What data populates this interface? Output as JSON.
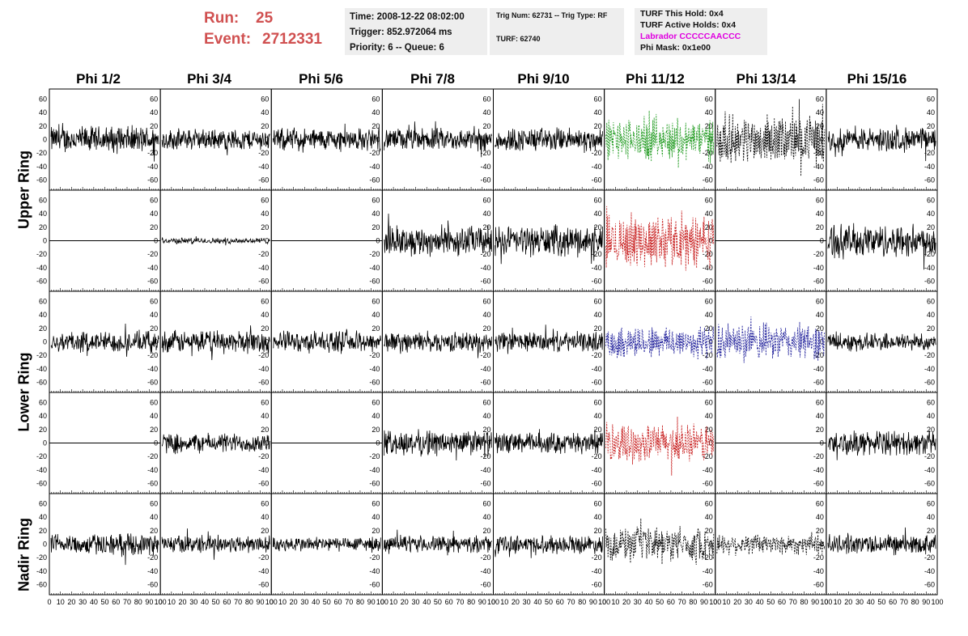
{
  "header": {
    "run_label": "Run:",
    "run_value": "25",
    "event_label": "Event:",
    "event_value": "2712331",
    "time": "Time: 2008-12-22 08:02:00",
    "trigger": "Trigger: 852.972064 ms",
    "priority": "Priority: 6 -- Queue: 6",
    "trig_num": "Trig Num: 62731 -- Trig Type: RF",
    "turf": "TURF: 62740",
    "turf_this_hold": "TURF This Hold: 0x4",
    "turf_active_holds": "TURF Active Holds: 0x4",
    "labrador": "Labrador CCCCCAACCC",
    "phi_mask": "Phi Mask: 0x1e00"
  },
  "columns": [
    "Phi 1/2",
    "Phi 3/4",
    "Phi 5/6",
    "Phi 7/8",
    "Phi 9/10",
    "Phi 11/12",
    "Phi 13/14",
    "Phi 15/16"
  ],
  "rows": [
    {
      "label": "Upper Ring",
      "span": [
        0,
        1
      ]
    },
    {
      "label": "Lower Ring",
      "span": [
        2,
        3
      ]
    },
    {
      "label": "Nadir Ring",
      "span": [
        4,
        4
      ]
    }
  ],
  "chart_data": {
    "type": "line",
    "xlim": [
      0,
      100
    ],
    "ylim": [
      -75,
      75
    ],
    "x_ticks": [
      "0",
      "10",
      "20",
      "30",
      "40",
      "50",
      "60",
      "70",
      "80",
      "90",
      "100"
    ],
    "y_ticks": [
      "60",
      "40",
      "20",
      "0",
      "-20",
      "-40",
      "-60"
    ],
    "y_tick_values": [
      60,
      40,
      20,
      0,
      -20,
      -40,
      -60
    ],
    "colors": {
      "black": "#000000",
      "green": "#1e9a1e",
      "red": "#c81e1e",
      "blue": "#1e1e9a"
    },
    "panels": [
      [
        {
          "style": "solid",
          "amp": 18,
          "color": "black"
        },
        {
          "style": "solid",
          "amp": 14,
          "color": "black"
        },
        {
          "style": "solid",
          "amp": 15,
          "color": "black"
        },
        {
          "style": "solid",
          "amp": 15,
          "color": "black"
        },
        {
          "style": "solid",
          "amp": 16,
          "color": "black"
        },
        {
          "style": "dashed",
          "amp": 28,
          "color": "green"
        },
        {
          "style": "dashed",
          "amp": 32,
          "color": "black"
        },
        {
          "style": "solid",
          "amp": 16,
          "color": "black"
        }
      ],
      [
        {
          "style": "flat",
          "amp": 0,
          "color": "black"
        },
        {
          "style": "solid",
          "amp": 4,
          "color": "black"
        },
        {
          "style": "flat",
          "amp": 0,
          "color": "black"
        },
        {
          "style": "solid",
          "amp": 20,
          "color": "black"
        },
        {
          "style": "solid",
          "amp": 20,
          "color": "black"
        },
        {
          "style": "dashed",
          "amp": 35,
          "color": "red"
        },
        {
          "style": "flat",
          "amp": 0,
          "color": "black"
        },
        {
          "style": "solid",
          "amp": 22,
          "color": "black"
        }
      ],
      [
        {
          "style": "solid",
          "amp": 14,
          "color": "black"
        },
        {
          "style": "solid",
          "amp": 15,
          "color": "black"
        },
        {
          "style": "solid",
          "amp": 14,
          "color": "black"
        },
        {
          "style": "solid",
          "amp": 13,
          "color": "black"
        },
        {
          "style": "solid",
          "amp": 13,
          "color": "black"
        },
        {
          "style": "dashed",
          "amp": 22,
          "color": "blue"
        },
        {
          "style": "dashed",
          "amp": 24,
          "color": "blue"
        },
        {
          "style": "solid",
          "amp": 12,
          "color": "black"
        }
      ],
      [
        {
          "style": "flat",
          "amp": 0,
          "color": "black"
        },
        {
          "style": "solid",
          "amp": 13,
          "color": "black"
        },
        {
          "style": "flat",
          "amp": 0,
          "color": "black"
        },
        {
          "style": "solid",
          "amp": 17,
          "color": "black"
        },
        {
          "style": "solid",
          "amp": 14,
          "color": "black"
        },
        {
          "style": "dashed",
          "amp": 25,
          "color": "red"
        },
        {
          "style": "flat",
          "amp": 0,
          "color": "black"
        },
        {
          "style": "solid",
          "amp": 16,
          "color": "black"
        }
      ],
      [
        {
          "style": "solid",
          "amp": 14,
          "color": "black"
        },
        {
          "style": "solid",
          "amp": 12,
          "color": "black"
        },
        {
          "style": "solid",
          "amp": 10,
          "color": "black"
        },
        {
          "style": "solid",
          "amp": 11,
          "color": "black"
        },
        {
          "style": "solid",
          "amp": 12,
          "color": "black"
        },
        {
          "style": "dashed",
          "amp": 22,
          "color": "black"
        },
        {
          "style": "dashed",
          "amp": 14,
          "color": "black"
        },
        {
          "style": "solid",
          "amp": 13,
          "color": "black"
        }
      ]
    ]
  }
}
